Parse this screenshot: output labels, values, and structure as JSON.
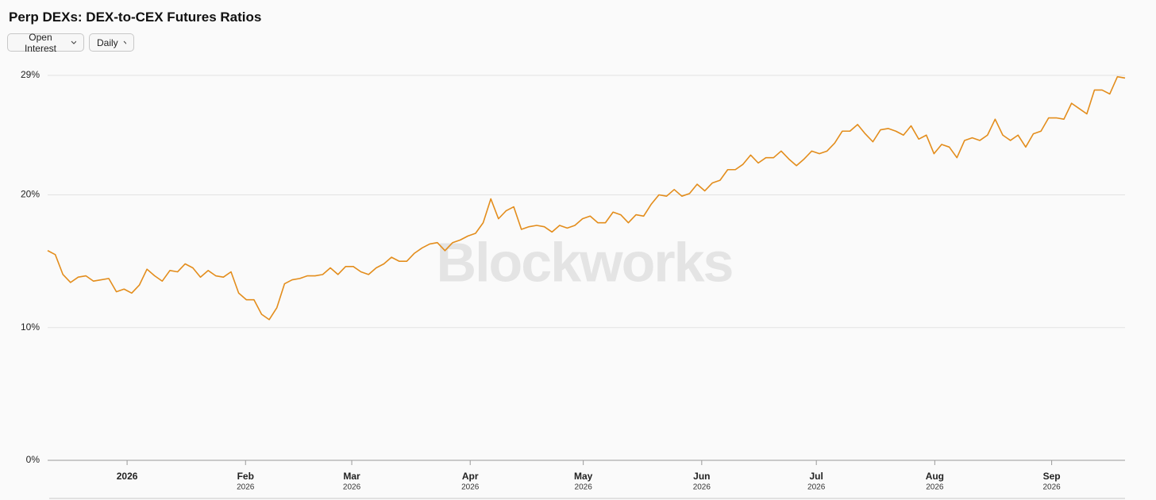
{
  "controls": {
    "metric": "Open Interest",
    "interval": "Daily"
  },
  "chart_data": {
    "type": "line",
    "title": "Perp DEXs: DEX-to-CEX Futures Ratios",
    "watermark": "Blockworks",
    "color": "#e38d1c",
    "grid": true,
    "xlim": [
      0,
      141
    ],
    "xticks": [
      {
        "value": 10.4,
        "label": "2026"
      },
      {
        "value": 25.9,
        "label": "Feb"
      },
      {
        "value": 39.8,
        "label": "Mar"
      },
      {
        "value": 55.3,
        "label": "Apr"
      },
      {
        "value": 70.1,
        "label": "May"
      },
      {
        "value": 85.6,
        "label": "Jun"
      },
      {
        "value": 100.6,
        "label": "Jul"
      },
      {
        "value": 116.1,
        "label": "Aug"
      },
      {
        "value": 131.4,
        "label": "Sep"
      }
    ],
    "xtick_sublabels": [
      null,
      "2026",
      "2026",
      "2026",
      "2026",
      "2026",
      "2026",
      "2026",
      "2026"
    ],
    "ylim": [
      0,
      29
    ],
    "yticks": [
      {
        "value": 0,
        "label": "0%"
      },
      {
        "value": 10,
        "label": "10%"
      },
      {
        "value": 20,
        "label": "20%"
      },
      {
        "value": 29,
        "label": "29%"
      }
    ],
    "values": [
      15.8,
      15.5,
      14.0,
      13.4,
      13.8,
      13.9,
      13.5,
      13.6,
      13.7,
      12.7,
      12.9,
      12.6,
      13.2,
      14.4,
      13.9,
      13.5,
      14.3,
      14.2,
      14.8,
      14.5,
      13.8,
      14.3,
      13.9,
      13.8,
      14.2,
      12.6,
      12.1,
      12.1,
      11.0,
      10.6,
      11.5,
      13.3,
      13.6,
      13.7,
      13.9,
      13.9,
      14.0,
      14.5,
      14.0,
      14.6,
      14.6,
      14.2,
      14.0,
      14.5,
      14.8,
      15.3,
      15.0,
      15.0,
      15.6,
      16.0,
      16.3,
      16.4,
      15.8,
      16.4,
      16.6,
      16.9,
      17.1,
      17.9,
      19.7,
      18.2,
      18.8,
      19.1,
      17.4,
      17.6,
      17.7,
      17.6,
      17.2,
      17.7,
      17.5,
      17.7,
      18.2,
      18.4,
      17.9,
      17.9,
      18.7,
      18.5,
      17.9,
      18.5,
      18.4,
      19.3,
      20.0,
      19.9,
      20.4,
      19.9,
      20.1,
      20.8,
      20.3,
      20.9,
      21.1,
      21.9,
      21.9,
      22.3,
      23.0,
      22.4,
      22.8,
      22.8,
      23.3,
      22.7,
      22.2,
      22.7,
      23.3,
      23.1,
      23.3,
      23.9,
      24.8,
      24.8,
      25.3,
      24.6,
      24.0,
      24.9,
      25.0,
      24.8,
      24.5,
      25.2,
      24.2,
      24.5,
      23.1,
      23.8,
      23.6,
      22.8,
      24.1,
      24.3,
      24.1,
      24.5,
      25.7,
      24.5,
      24.1,
      24.5,
      23.6,
      24.6,
      24.8,
      25.8,
      25.8,
      25.7,
      26.9,
      26.5,
      26.1,
      27.9,
      27.9,
      27.6,
      28.9,
      28.8
    ]
  }
}
